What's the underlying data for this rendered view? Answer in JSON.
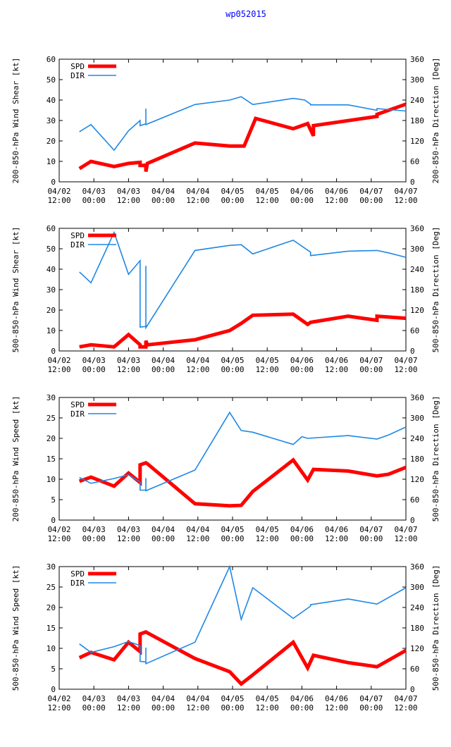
{
  "title": "wp052015",
  "colors": {
    "spd": "#ff0000",
    "dir": "#1e88e5",
    "title": "#0000ff",
    "axis": "#000000"
  },
  "x_tick_labels": [
    {
      "date": "04/02",
      "time": "12:00"
    },
    {
      "date": "04/03",
      "time": "00:00"
    },
    {
      "date": "04/03",
      "time": "12:00"
    },
    {
      "date": "04/04",
      "time": "00:00"
    },
    {
      "date": "04/04",
      "time": "12:00"
    },
    {
      "date": "04/05",
      "time": "00:00"
    },
    {
      "date": "04/05",
      "time": "12:00"
    },
    {
      "date": "04/06",
      "time": "00:00"
    },
    {
      "date": "04/06",
      "time": "12:00"
    },
    {
      "date": "04/07",
      "time": "00:00"
    },
    {
      "date": "04/07",
      "time": "12:00"
    }
  ],
  "chart_data": [
    {
      "type": "line",
      "ylabel": "200-850-hPa Wind Shear [kt]",
      "y2label": "200-850-hPa Direction [Deg]",
      "ylim": [
        0,
        60
      ],
      "yticks": [
        0,
        10,
        20,
        30,
        40,
        50,
        60
      ],
      "y2lim": [
        0,
        360
      ],
      "y2ticks": [
        0,
        60,
        120,
        180,
        240,
        300,
        360
      ],
      "xlim": [
        0,
        120
      ],
      "legend": [
        "SPD",
        "DIR"
      ],
      "series": [
        {
          "name": "SPD",
          "axis": "left",
          "x": [
            7,
            11,
            19,
            24,
            28,
            28,
            30,
            30,
            30,
            30.5,
            47,
            59,
            64,
            68,
            81,
            86,
            88,
            88,
            110,
            110,
            120
          ],
          "y": [
            6.5,
            10,
            7.5,
            9,
            9.5,
            8,
            8,
            9,
            5,
            9,
            19,
            17.5,
            17.5,
            31,
            26,
            28.5,
            22.5,
            27.5,
            32,
            33,
            38
          ]
        },
        {
          "name": "DIR",
          "axis": "right",
          "x": [
            7,
            11,
            19,
            24,
            28,
            28,
            30,
            30,
            30,
            47,
            59,
            63,
            67,
            81,
            85,
            87,
            87,
            100,
            110,
            110,
            120
          ],
          "y": [
            147,
            168,
            93,
            150,
            180,
            165,
            170,
            215,
            168,
            227,
            240,
            250,
            227,
            245,
            240,
            228,
            226,
            226,
            210,
            215,
            208
          ]
        }
      ]
    },
    {
      "type": "line",
      "ylabel": "500-850-hPa Wind Shear [kt]",
      "y2label": "500-850-hPa Direction [Deg]",
      "ylim": [
        0,
        60
      ],
      "yticks": [
        0,
        10,
        20,
        30,
        40,
        50,
        60
      ],
      "y2lim": [
        0,
        360
      ],
      "y2ticks": [
        0,
        60,
        120,
        180,
        240,
        300,
        360
      ],
      "xlim": [
        0,
        120
      ],
      "legend": [
        "SPD",
        "DIR"
      ],
      "series": [
        {
          "name": "SPD",
          "axis": "left",
          "x": [
            7,
            11,
            19,
            24,
            28,
            28,
            30,
            30,
            30.5,
            47,
            59,
            63,
            67,
            81,
            86,
            87,
            100,
            110,
            110,
            120
          ],
          "y": [
            2,
            3,
            2,
            8,
            3,
            2,
            2,
            5,
            3,
            5.5,
            10,
            13.5,
            17.5,
            18,
            13,
            14,
            17,
            15,
            17,
            16
          ]
        },
        {
          "name": "DIR",
          "axis": "right",
          "x": [
            7,
            11,
            19,
            24,
            28,
            28,
            30,
            30,
            30,
            47,
            59,
            63,
            67,
            81,
            87,
            87,
            100,
            110,
            114,
            120
          ],
          "y": [
            232,
            200,
            348,
            225,
            265,
            70,
            72,
            250,
            68,
            295,
            310,
            312,
            285,
            325,
            290,
            280,
            293,
            295,
            288,
            275
          ]
        }
      ]
    },
    {
      "type": "line",
      "ylabel": "200-850-hPa Wind Speed [kt]",
      "y2label": "500-850-hPa Direction [Deg]",
      "ylim": [
        0,
        30
      ],
      "yticks": [
        0,
        5,
        10,
        15,
        20,
        25,
        30
      ],
      "y2lim": [
        0,
        360
      ],
      "y2ticks": [
        0,
        60,
        120,
        180,
        240,
        300,
        360
      ],
      "xlim": [
        0,
        120
      ],
      "legend": [
        "SPD",
        "DIR"
      ],
      "series": [
        {
          "name": "SPD",
          "axis": "left",
          "x": [
            7,
            11,
            19,
            24,
            28,
            28,
            30,
            30.5,
            47,
            59,
            63,
            67,
            81,
            86,
            88,
            100,
            110,
            114,
            120
          ],
          "y": [
            9.5,
            10.5,
            8.3,
            11.5,
            9.2,
            13.5,
            14,
            13.8,
            4,
            3.5,
            3.6,
            7,
            14.7,
            9.8,
            12.4,
            12,
            10.8,
            11.2,
            12.9
          ]
        },
        {
          "name": "DIR",
          "axis": "right",
          "x": [
            7,
            11,
            19,
            24,
            28,
            28,
            30,
            30,
            30,
            47,
            59,
            63,
            67,
            81,
            84,
            86,
            100,
            110,
            114,
            120
          ],
          "y": [
            125,
            108,
            122,
            133,
            112,
            88,
            88,
            123,
            86,
            147,
            316,
            263,
            258,
            222,
            245,
            240,
            248,
            238,
            250,
            273
          ]
        }
      ]
    },
    {
      "type": "line",
      "ylabel": "500-850-hPa Wind Speed [kt]",
      "y2label": "500-850-hPa Direction [Deg]",
      "ylim": [
        0,
        30
      ],
      "yticks": [
        0,
        5,
        10,
        15,
        20,
        25,
        30
      ],
      "y2lim": [
        0,
        360
      ],
      "y2ticks": [
        0,
        60,
        120,
        180,
        240,
        300,
        360
      ],
      "xlim": [
        0,
        120
      ],
      "legend": [
        "SPD",
        "DIR"
      ],
      "series": [
        {
          "name": "SPD",
          "axis": "left",
          "x": [
            7,
            11,
            19,
            24,
            28,
            28,
            30,
            30.5,
            47,
            59,
            63,
            67,
            81,
            86,
            88,
            100,
            110,
            112,
            120
          ],
          "y": [
            7.7,
            9,
            7.2,
            11.5,
            9.2,
            13.5,
            14,
            13.8,
            7.5,
            4.3,
            1.3,
            3.5,
            11.5,
            5.2,
            8.3,
            6.5,
            5.5,
            6.3,
            9.5
          ]
        },
        {
          "name": "DIR",
          "axis": "right",
          "x": [
            7,
            11,
            19,
            24,
            28,
            28,
            30,
            30,
            30,
            47,
            59,
            63,
            67,
            81,
            87,
            87,
            100,
            110,
            120
          ],
          "y": [
            133,
            108,
            125,
            140,
            128,
            82,
            80,
            122,
            75,
            138,
            360,
            205,
            298,
            208,
            244,
            248,
            265,
            250,
            298
          ]
        }
      ]
    }
  ]
}
